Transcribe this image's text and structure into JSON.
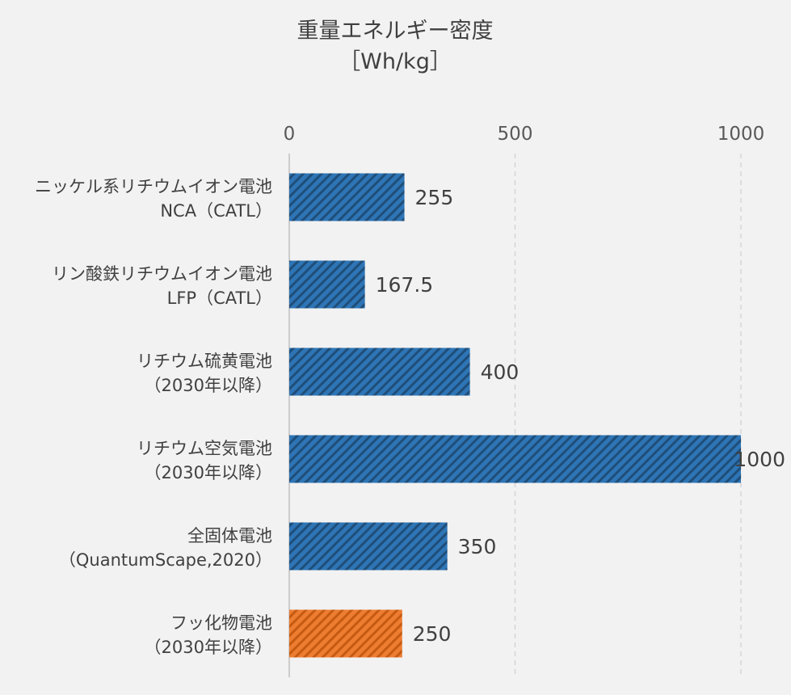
{
  "chart_data": {
    "type": "bar",
    "orientation": "horizontal",
    "title": "重量エネルギー密度",
    "subtitle": "［Wh/kg］",
    "categories": [
      [
        "ニッケル系リチウムイオン電池",
        "NCA（CATL）"
      ],
      [
        "リン酸鉄リチウムイオン電池",
        "LFP（CATL）"
      ],
      [
        "リチウム硫黄電池",
        "（2030年以降）"
      ],
      [
        "リチウム空気電池",
        "（2030年以降）"
      ],
      [
        "全固体電池",
        "（QuantumScape,2020）"
      ],
      [
        "フッ化物電池",
        "（2030年以降）"
      ]
    ],
    "values": [
      255,
      167.5,
      400,
      1000,
      350,
      250
    ],
    "value_labels": [
      "255",
      "167.5",
      "400",
      "1000",
      "350",
      "250"
    ],
    "xlim": [
      0,
      1000
    ],
    "ticks": [
      0,
      500,
      1000
    ],
    "tick_labels": [
      "0",
      "500",
      "1000"
    ],
    "axis_position": "top",
    "grid": "dashed vertical",
    "colors": {
      "default": "#2e75b6",
      "highlight": "#ed7d31",
      "stripe": "#1f4e79",
      "stripe_highlight": "#c55a11",
      "background": "#f2f2f2",
      "grid": "#d0d0d0"
    },
    "highlight_index": 5,
    "pattern": "diagonal-stripes"
  }
}
